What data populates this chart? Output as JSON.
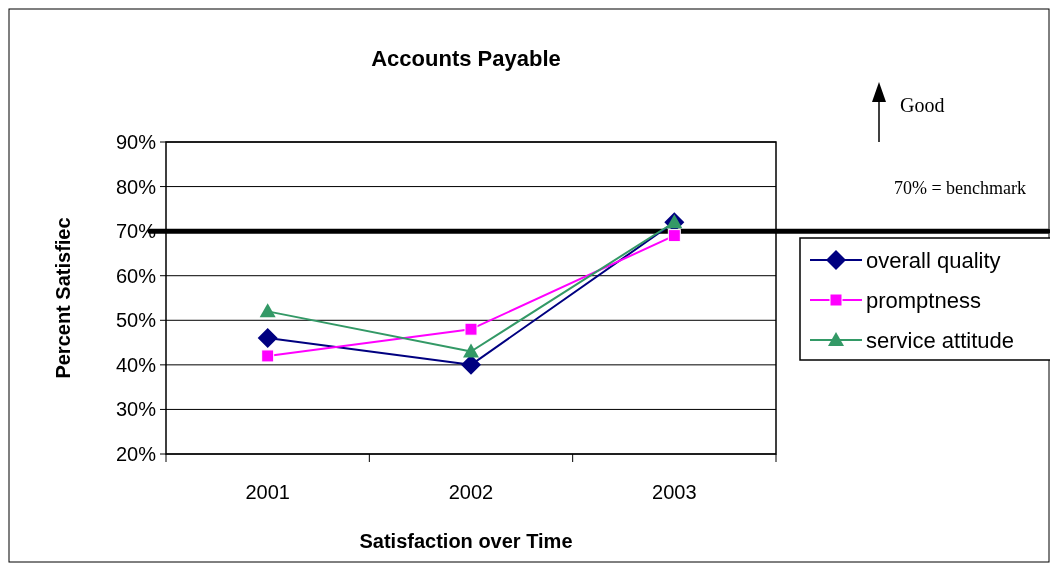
{
  "chart_data": {
    "type": "line",
    "title": "Accounts Payable",
    "xlabel": "Satisfaction over Time",
    "ylabel": "Percent Satisfiec",
    "categories": [
      "2001",
      "2002",
      "2003"
    ],
    "series": [
      {
        "name": "overall quality",
        "color": "#000080",
        "values": [
          46,
          40,
          72
        ],
        "marker": "diamond"
      },
      {
        "name": "promptness",
        "color": "#ff00ff",
        "values": [
          42,
          48,
          69
        ],
        "marker": "square"
      },
      {
        "name": "service attitude",
        "color": "#339966",
        "values": [
          52,
          43,
          72
        ],
        "marker": "triangle"
      }
    ],
    "ylim": [
      20,
      90
    ],
    "yticks": [
      {
        "value": 20,
        "label": "20%"
      },
      {
        "value": 30,
        "label": "30%"
      },
      {
        "value": 40,
        "label": "40%"
      },
      {
        "value": 50,
        "label": "50%"
      },
      {
        "value": 60,
        "label": "60%"
      },
      {
        "value": 70,
        "label": "70%"
      },
      {
        "value": 80,
        "label": "80%"
      },
      {
        "value": 90,
        "label": "90%"
      }
    ],
    "grid": "y",
    "legend": "right",
    "line_style": "solid",
    "ref_lines": [
      {
        "axis": "y",
        "value": 70,
        "label": "70% = benchmark",
        "color": "#000000"
      }
    ],
    "annotations": [
      "Good"
    ]
  }
}
